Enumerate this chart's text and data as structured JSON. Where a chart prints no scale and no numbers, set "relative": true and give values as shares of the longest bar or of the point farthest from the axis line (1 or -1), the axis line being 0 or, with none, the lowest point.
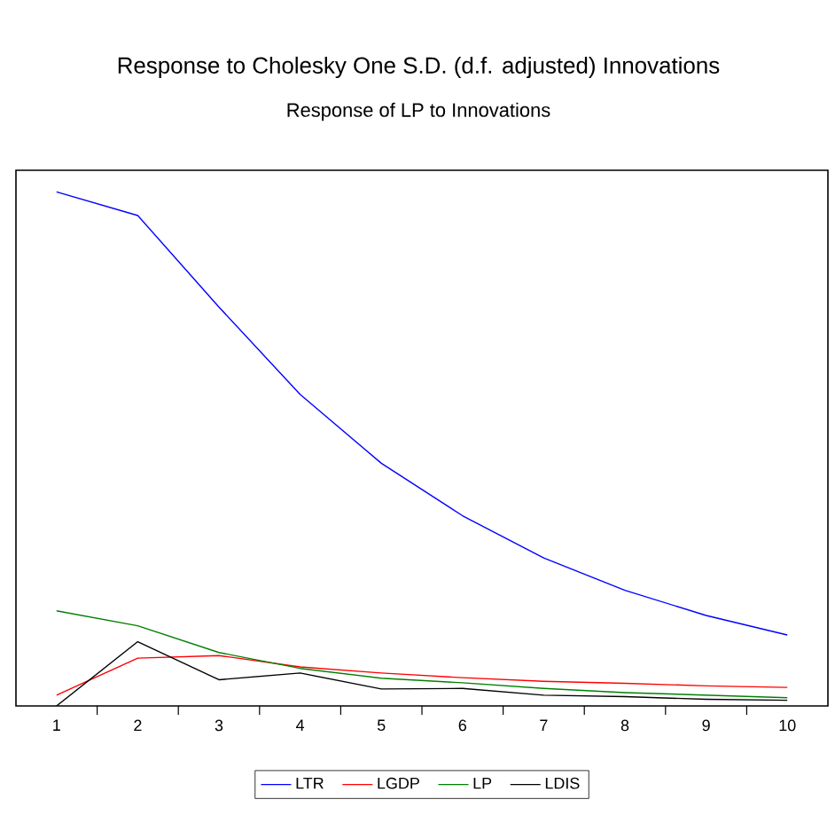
{
  "chart_data": {
    "type": "line",
    "title": "Response to Cholesky One S.D. (d.f. adjusted) Innovations",
    "subtitle": "Response of LP to Innovations",
    "categories": [
      "1",
      "2",
      "3",
      "4",
      "5",
      "6",
      "7",
      "8",
      "9",
      "10"
    ],
    "relative": true,
    "legend": "bottom",
    "marker": "none",
    "line_style": "solid",
    "series": [
      {
        "name": "LTR",
        "color": "#0000ff",
        "values": [
          1,
          0.954,
          0.776,
          0.606,
          0.472,
          0.37,
          0.288,
          0.225,
          0.176,
          0.138
        ]
      },
      {
        "name": "LGDP",
        "color": "#ff0000",
        "values": [
          0.021,
          0.093,
          0.098,
          0.076,
          0.064,
          0.055,
          0.048,
          0.044,
          0.039,
          0.036
        ]
      },
      {
        "name": "LP",
        "color": "#008000",
        "values": [
          0.185,
          0.156,
          0.104,
          0.073,
          0.054,
          0.045,
          0.034,
          0.026,
          0.021,
          0.016
        ]
      },
      {
        "name": "LDIS",
        "color": "#000000",
        "values": [
          0,
          0.125,
          0.051,
          0.064,
          0.033,
          0.034,
          0.021,
          0.018,
          0.013,
          0.011
        ]
      }
    ]
  }
}
